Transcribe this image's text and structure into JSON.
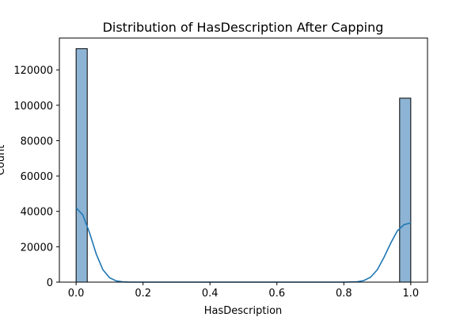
{
  "chart_data": {
    "type": "bar",
    "title": "Distribution of HasDescription After Capping",
    "xlabel": "HasDescription",
    "ylabel": "Count",
    "xlim": [
      -0.05,
      1.05
    ],
    "ylim": [
      0,
      138000
    ],
    "x_ticks": [
      0.0,
      0.2,
      0.4,
      0.6,
      0.8,
      1.0
    ],
    "x_tick_labels": [
      "0.0",
      "0.2",
      "0.4",
      "0.6",
      "0.8",
      "1.0"
    ],
    "y_ticks": [
      0,
      20000,
      40000,
      60000,
      80000,
      100000,
      120000
    ],
    "y_tick_labels": [
      "0",
      "20000",
      "40000",
      "60000",
      "80000",
      "100000",
      "120000"
    ],
    "bins": [
      {
        "x0": 0.0,
        "x1": 0.0333,
        "count": 132000
      },
      {
        "x0": 0.9667,
        "x1": 1.0,
        "count": 104000
      }
    ],
    "kde": {
      "x": [
        0.0,
        0.02,
        0.04,
        0.06,
        0.08,
        0.1,
        0.12,
        0.14,
        0.16,
        0.2,
        0.4,
        0.6,
        0.8,
        0.84,
        0.86,
        0.88,
        0.9,
        0.92,
        0.94,
        0.96,
        0.98,
        1.0
      ],
      "y": [
        42000,
        38000,
        28000,
        16000,
        7000,
        2500,
        700,
        150,
        0,
        0,
        0,
        0,
        0,
        200,
        900,
        2800,
        7000,
        14000,
        22000,
        29000,
        32500,
        33500
      ]
    },
    "grid": false,
    "bar_color": "#8db4d4",
    "bar_edge_color": "#000000",
    "kde_color": "#1f77b4"
  }
}
